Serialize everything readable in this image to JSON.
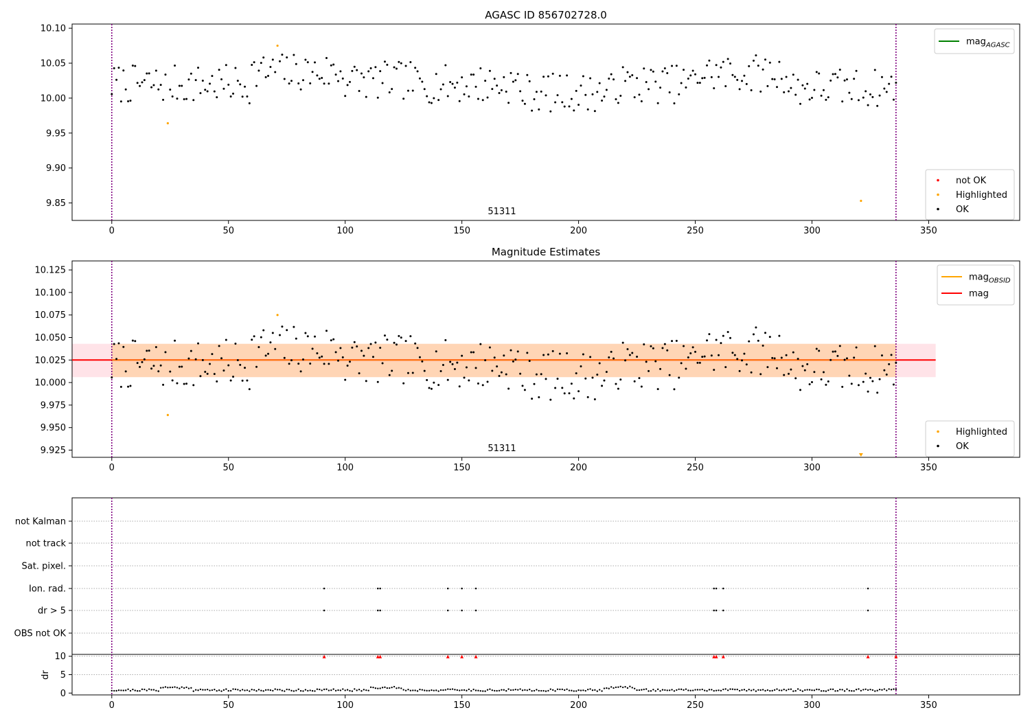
{
  "chart_data": [
    {
      "type": "scatter",
      "title": "AGASC ID 856702728.0",
      "annotation": "51311",
      "xlim": [
        -17,
        389
      ],
      "ylim": [
        9.825,
        10.106
      ],
      "xticks": [
        0,
        50,
        100,
        150,
        200,
        250,
        300,
        350
      ],
      "yticks": [
        9.85,
        9.9,
        9.95,
        10.0,
        10.05,
        10.1
      ],
      "ytick_labels": [
        "9.85",
        "9.90",
        "9.95",
        "10.00",
        "10.05",
        "10.10"
      ],
      "vlines": [
        0,
        336
      ],
      "legends": [
        {
          "position": "top-right",
          "entries": [
            {
              "label": "mag",
              "subscript": "AGASC",
              "color": "#008000",
              "marker": "line"
            }
          ]
        },
        {
          "position": "bottom-right",
          "entries": [
            {
              "label": "not OK",
              "color": "#ff0000",
              "marker": "dot"
            },
            {
              "label": "Highlighted",
              "color": "#ffa500",
              "marker": "dot"
            },
            {
              "label": "OK",
              "color": "#000000",
              "marker": "dot"
            }
          ]
        }
      ],
      "highlighted": [
        [
          24,
          9.964
        ],
        [
          71,
          10.075
        ],
        [
          321,
          9.853
        ]
      ]
    },
    {
      "type": "scatter",
      "title": "Magnitude Estimates",
      "annotation": "51311",
      "xlim": [
        -17,
        389
      ],
      "ylim": [
        9.917,
        10.135
      ],
      "xticks": [
        0,
        50,
        100,
        150,
        200,
        250,
        300,
        350
      ],
      "yticks": [
        9.925,
        9.95,
        9.975,
        10.0,
        10.025,
        10.05,
        10.075,
        10.1,
        10.125
      ],
      "ytick_labels": [
        "9.925",
        "9.950",
        "9.975",
        "10.000",
        "10.025",
        "10.050",
        "10.075",
        "10.100",
        "10.125"
      ],
      "vlines": [
        0,
        336
      ],
      "mag_line": {
        "value": 10.025,
        "x_range": [
          -17,
          353
        ],
        "color": "#ff0000"
      },
      "bands": [
        {
          "y_range": [
            10.006,
            10.043
          ],
          "x_range": [
            -17,
            353
          ],
          "color": "#ffc0cb",
          "opacity": 0.45
        },
        {
          "y_range": [
            10.006,
            10.043
          ],
          "x_range": [
            0,
            336
          ],
          "color": "#ffa500",
          "opacity": 0.22
        }
      ],
      "legends": [
        {
          "position": "top-right",
          "entries": [
            {
              "label": "mag",
              "subscript": "OBSID",
              "color": "#ffa500",
              "marker": "line"
            },
            {
              "label": "mag",
              "subscript": "",
              "color": "#ff0000",
              "marker": "line"
            }
          ]
        },
        {
          "position": "bottom-right",
          "entries": [
            {
              "label": "Highlighted",
              "color": "#ffa500",
              "marker": "dot"
            },
            {
              "label": "OK",
              "color": "#000000",
              "marker": "dot"
            }
          ]
        }
      ],
      "highlighted": [
        [
          24,
          9.964
        ],
        [
          71,
          10.075
        ]
      ],
      "off_scale_low": [
        321
      ]
    },
    {
      "type": "scatter",
      "title": "",
      "xlim": [
        -17,
        389
      ],
      "xticks": [
        0,
        50,
        100,
        150,
        200,
        250,
        300,
        350
      ],
      "vlines": [
        0,
        336
      ],
      "flag_rows": [
        "not Kalman",
        "not track",
        "Sat. pixel.",
        "Ion. rad.",
        "dr > 5",
        "OBS not OK"
      ],
      "flag_points": {
        "Ion. rad.": [
          91,
          114,
          115,
          144,
          150,
          156,
          258,
          259,
          262,
          324
        ],
        "dr > 5": [
          91,
          114,
          115,
          144,
          150,
          156,
          258,
          259,
          262,
          324
        ]
      },
      "dr_ylabel": "dr",
      "dr_yticks": [
        0,
        5,
        10
      ],
      "dr_ylim": [
        -0.5,
        10.5
      ],
      "dr_high_points": [
        91,
        114,
        115,
        144,
        150,
        156,
        258,
        259,
        262,
        324,
        336
      ],
      "dr_high_value": 10
    }
  ]
}
